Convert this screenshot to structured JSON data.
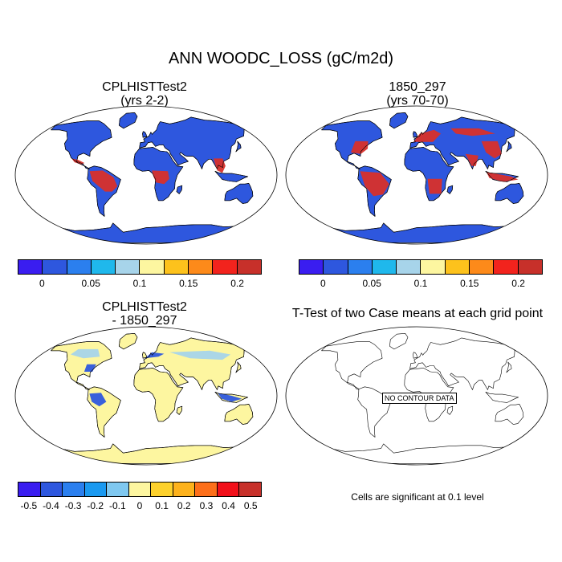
{
  "title": "ANN WOODC_LOSS (gC/m2d)",
  "panels": {
    "p1": {
      "title_line1": "CPLHISTTest2",
      "title_line2": "(yrs 2-2)"
    },
    "p2": {
      "title_line1": "1850_297",
      "title_line2": "(yrs 70-70)"
    },
    "p3": {
      "title_line1": "CPLHISTTest2",
      "title_line2": "- 1850_297"
    },
    "p4": {
      "title_line1": "T-Test of two Case means at each grid point",
      "nodata_label": "NO CONTOUR DATA",
      "significance_note": "Cells are significant at 0.1 level"
    }
  },
  "colorbar_top": {
    "colors": [
      "#3a1df0",
      "#2e57de",
      "#2b7fee",
      "#1fb8ec",
      "#a7d4ea",
      "#fdf6a0",
      "#fdc21c",
      "#fd8a1a",
      "#f2231d",
      "#c7302a"
    ],
    "labels": [
      "0",
      "0.05",
      "0.1",
      "0.15",
      "0.2"
    ]
  },
  "colorbar_diff": {
    "colors": [
      "#3a1df0",
      "#2e57de",
      "#2b7fee",
      "#1a99f0",
      "#7fc8f0",
      "#fdf6a0",
      "#fdd12c",
      "#fdb21c",
      "#fd6f1a",
      "#f2101a",
      "#c7302a"
    ],
    "labels": [
      "-0.5",
      "-0.4",
      "-0.3",
      "-0.2",
      "-0.1",
      "0",
      "0.1",
      "0.2",
      "0.3",
      "0.4",
      "0.5"
    ]
  },
  "land_colors": {
    "p1_base": "#2e57de",
    "p1_hot": "#d8302a",
    "p2_base": "#2e57de",
    "p2_hot": "#d8302a",
    "p3_base": "#fdf6a0",
    "p3_cool": "#a7d4ea",
    "p3_neg": "#2e57de"
  }
}
